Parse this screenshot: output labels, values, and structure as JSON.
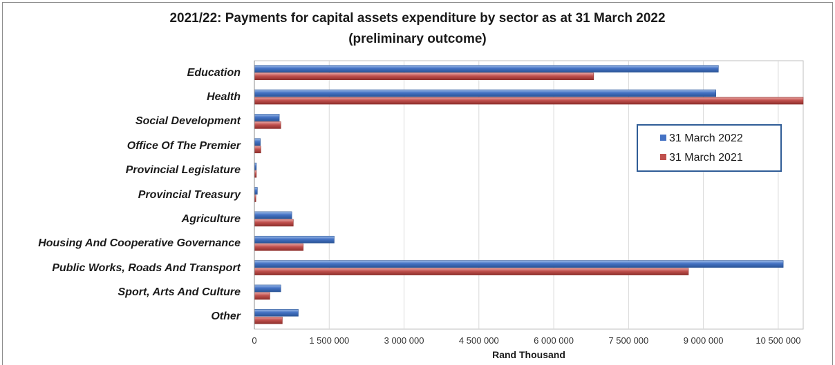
{
  "chart_data": {
    "type": "bar",
    "orientation": "horizontal",
    "title": "2021/22: Payments for capital assets expenditure by sector as at 31 March 2022",
    "subtitle": "(preliminary outcome)",
    "xlabel": "Rand Thousand",
    "ylabel": "",
    "xlim": [
      0,
      11000000
    ],
    "x_ticks": [
      0,
      1500000,
      3000000,
      4500000,
      6000000,
      7500000,
      9000000,
      10500000
    ],
    "x_tick_labels": [
      "0",
      "1 500 000",
      "3 000 000",
      "4 500 000",
      "6 000 000",
      "7 500 000",
      "9 000 000",
      "10 500 000"
    ],
    "grid": true,
    "legend_position": "right",
    "categories": [
      "Education",
      "Health",
      "Social Development",
      "Office Of The Premier",
      "Provincial Legislature",
      "Provincial Treasury",
      "Agriculture",
      "Housing And Cooperative Governance",
      "Public Works, Roads And Transport",
      "Sport, Arts And Culture",
      "Other"
    ],
    "series": [
      {
        "name": "31 March 2022",
        "color": "#4472c4",
        "values": [
          9300000,
          9250000,
          500000,
          120000,
          40000,
          60000,
          750000,
          1600000,
          10600000,
          530000,
          880000
        ]
      },
      {
        "name": "31 March 2021",
        "color": "#c0504d",
        "values": [
          6800000,
          11000000,
          530000,
          130000,
          40000,
          30000,
          780000,
          980000,
          8700000,
          310000,
          560000
        ]
      }
    ]
  }
}
